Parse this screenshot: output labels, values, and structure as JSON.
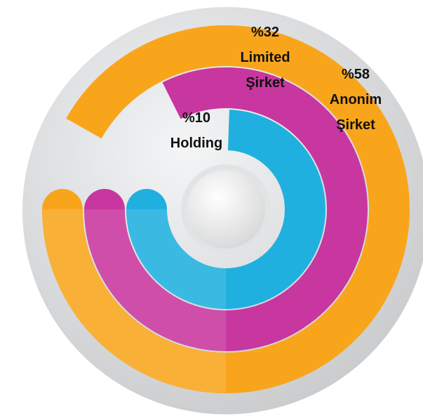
{
  "chart_data": {
    "type": "radial_bar",
    "categories": [
      "Holding",
      "Limited Şirket",
      "Anonim Şirket"
    ],
    "values": [
      10,
      32,
      58
    ],
    "value_labels": [
      "%10",
      "%32",
      "%58"
    ],
    "colors": [
      "#1fb0e0",
      "#c8369f",
      "#f9a51c"
    ]
  }
}
